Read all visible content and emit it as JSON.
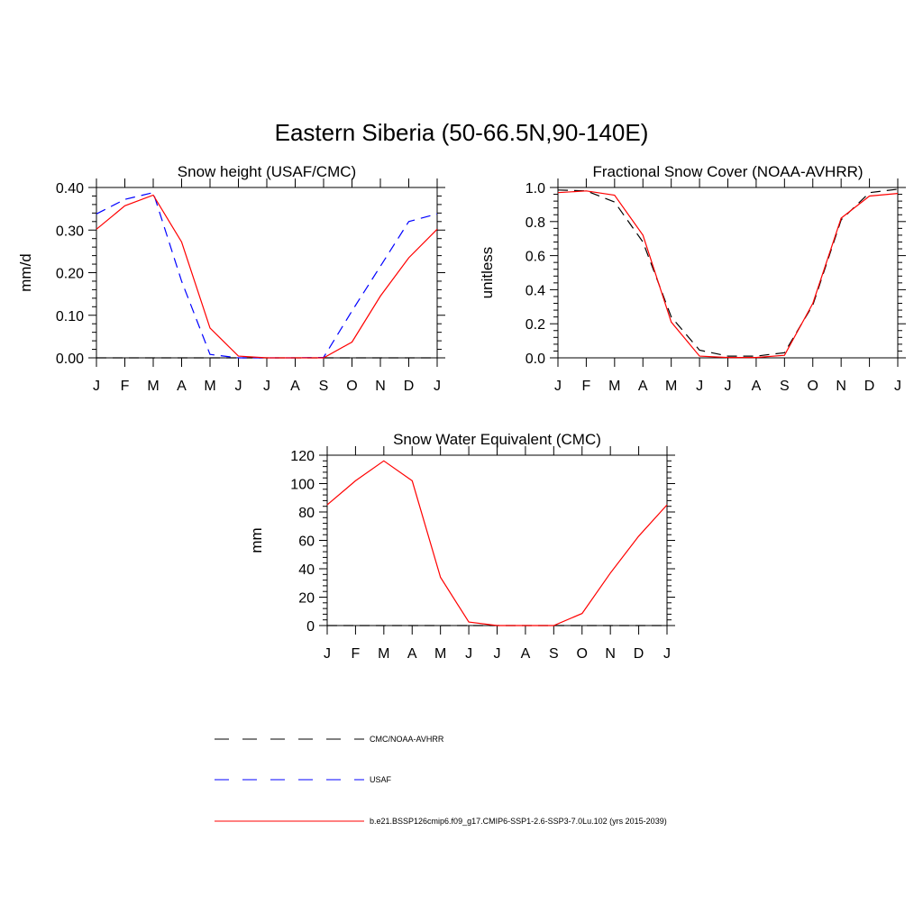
{
  "title": "Eastern Siberia (50-66.5N,90-140E)",
  "legend": [
    {
      "label": "CMC/NOAA-AVHRR",
      "color": "#000000",
      "dash": "dashed"
    },
    {
      "label": "USAF",
      "color": "#0000ff",
      "dash": "dashed"
    },
    {
      "label": "b.e21.BSSP126cmip6.f09_g17.CMIP6-SSP1-2.6-SSP3-7.0Lu.102 (yrs 2015-2039)",
      "color": "#ff0000",
      "dash": "solid"
    }
  ],
  "chart_data": [
    {
      "type": "line",
      "title": "Snow height (USAF/CMC)",
      "xlabel": "",
      "ylabel": "mm/d",
      "categories": [
        "J",
        "F",
        "M",
        "A",
        "M",
        "J",
        "J",
        "A",
        "S",
        "O",
        "N",
        "D",
        "J"
      ],
      "ylim": [
        0,
        0.4
      ],
      "yticks": [
        0,
        0.1,
        0.2,
        0.3,
        0.4
      ],
      "ytick_labels": [
        "0.00",
        "0.10",
        "0.20",
        "0.30",
        "0.40"
      ],
      "grid": false,
      "series": [
        {
          "name": "CMC/NOAA-AVHRR",
          "color": "#000000",
          "dash": "dashed",
          "values": [
            0,
            0,
            0,
            0,
            0,
            0,
            0,
            0,
            0,
            0,
            0,
            0,
            0
          ]
        },
        {
          "name": "USAF",
          "color": "#0000ff",
          "dash": "dashed",
          "values": [
            0.338,
            0.372,
            0.388,
            0.18,
            0.008,
            0.0,
            0.0,
            0.0,
            0.001,
            0.11,
            0.215,
            0.32,
            0.338
          ]
        },
        {
          "name": "b.e21.BSSP126cmip6.f09_g17.CMIP6-SSP1-2.6-SSP3-7.0Lu.102 (yrs 2015-2039)",
          "color": "#ff0000",
          "dash": "solid",
          "values": [
            0.302,
            0.357,
            0.382,
            0.272,
            0.07,
            0.004,
            0.0,
            0.0,
            0.0,
            0.037,
            0.145,
            0.235,
            0.302
          ]
        }
      ]
    },
    {
      "type": "line",
      "title": "Fractional Snow Cover (NOAA-AVHRR)",
      "xlabel": "",
      "ylabel": "unitless",
      "categories": [
        "J",
        "F",
        "M",
        "A",
        "M",
        "J",
        "J",
        "A",
        "S",
        "O",
        "N",
        "D",
        "J"
      ],
      "ylim": [
        0,
        1.0
      ],
      "yticks": [
        0,
        0.2,
        0.4,
        0.6,
        0.8,
        1.0
      ],
      "ytick_labels": [
        "0.0",
        "0.2",
        "0.4",
        "0.6",
        "0.8",
        "1.0"
      ],
      "grid": false,
      "series": [
        {
          "name": "CMC/NOAA-AVHRR",
          "color": "#000000",
          "dash": "dashed",
          "values": [
            0.985,
            0.98,
            0.915,
            0.68,
            0.24,
            0.045,
            0.01,
            0.01,
            0.03,
            0.31,
            0.81,
            0.97,
            0.99
          ]
        },
        {
          "name": "b.e21.BSSP126cmip6.f09_g17.CMIP6-SSP1-2.6-SSP3-7.0Lu.102 (yrs 2015-2039)",
          "color": "#ff0000",
          "dash": "solid",
          "values": [
            0.97,
            0.98,
            0.955,
            0.72,
            0.21,
            0.01,
            0.002,
            0.002,
            0.015,
            0.32,
            0.82,
            0.95,
            0.965
          ]
        }
      ]
    },
    {
      "type": "line",
      "title": "Snow Water Equivalent (CMC)",
      "xlabel": "",
      "ylabel": "mm",
      "categories": [
        "J",
        "F",
        "M",
        "A",
        "M",
        "J",
        "J",
        "A",
        "S",
        "O",
        "N",
        "D",
        "J"
      ],
      "ylim": [
        0,
        120
      ],
      "yticks": [
        0,
        20,
        40,
        60,
        80,
        100,
        120
      ],
      "ytick_labels": [
        "0",
        "20",
        "40",
        "60",
        "80",
        "100",
        "120"
      ],
      "grid": false,
      "series": [
        {
          "name": "CMC/NOAA-AVHRR",
          "color": "#000000",
          "dash": "dashed",
          "values": [
            0,
            0,
            0,
            0,
            0,
            0,
            0,
            0,
            0,
            0,
            0,
            0,
            0
          ]
        },
        {
          "name": "b.e21.BSSP126cmip6.f09_g17.CMIP6-SSP1-2.6-SSP3-7.0Lu.102 (yrs 2015-2039)",
          "color": "#ff0000",
          "dash": "solid",
          "values": [
            85,
            102,
            116,
            102,
            34,
            2.5,
            0,
            0,
            0,
            8.5,
            37,
            63,
            85
          ]
        }
      ]
    }
  ]
}
